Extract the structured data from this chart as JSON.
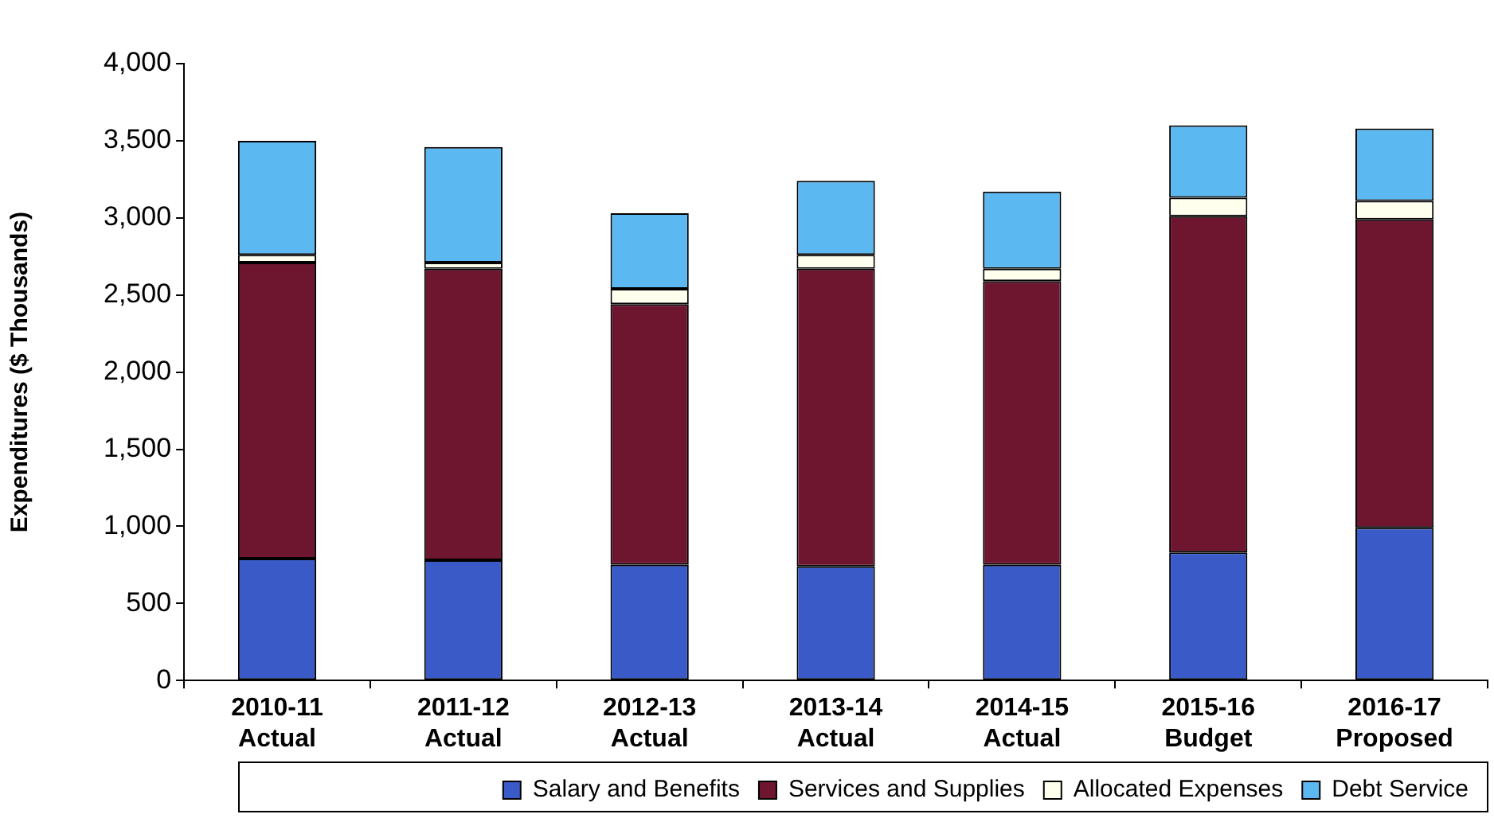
{
  "chart_data": {
    "type": "bar",
    "stacked": true,
    "ylabel": "Expenditures ($ Thousands)",
    "categories": [
      "2010-11 Actual",
      "2011-12 Actual",
      "2012-13 Actual",
      "2013-14 Actual",
      "2014-15 Actual",
      "2015-16 Budget",
      "2016-17 Proposed"
    ],
    "series": [
      {
        "name": "Salary and Benefits",
        "color": "#3a5bc7",
        "values": [
          790,
          780,
          750,
          740,
          750,
          830,
          990
        ]
      },
      {
        "name": "Services and Supplies",
        "color": "#6e1530",
        "values": [
          1920,
          1890,
          1690,
          1930,
          1840,
          2180,
          2000
        ]
      },
      {
        "name": "Allocated Expenses",
        "color": "#ffffee",
        "values": [
          50,
          40,
          100,
          90,
          80,
          120,
          120
        ]
      },
      {
        "name": "Debt Service",
        "color": "#5bb8f0",
        "values": [
          740,
          750,
          490,
          480,
          500,
          470,
          470
        ]
      }
    ],
    "ylim": [
      0,
      4000
    ],
    "yticks": [
      0,
      500,
      {
        "value": 1000,
        "label": "1,000"
      },
      {
        "value": 1500,
        "label": "1,500"
      },
      {
        "value": 2000,
        "label": "2,000"
      },
      {
        "value": 2500,
        "label": "2,500"
      },
      {
        "value": 3000,
        "label": "3,000"
      },
      {
        "value": 3500,
        "label": "3,500"
      },
      {
        "value": 4000,
        "label": "4,000"
      }
    ],
    "grid": false,
    "legend": "bottom"
  }
}
